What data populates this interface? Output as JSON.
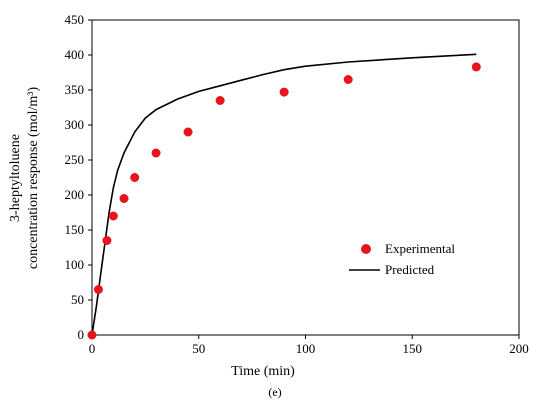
{
  "chart_data": {
    "type": "scatter",
    "xlabel": "Time (min)",
    "ylabel_line1": "3-heptyltoluene",
    "ylabel_line2": "concentration response (mol/m³)",
    "caption": "(e)",
    "xlim": [
      0,
      200
    ],
    "ylim": [
      0,
      450
    ],
    "x_ticks": [
      0,
      50,
      100,
      150,
      200
    ],
    "y_ticks": [
      0,
      50,
      100,
      150,
      200,
      250,
      300,
      350,
      400,
      450
    ],
    "legend_position": "center-right",
    "grid": false,
    "series": [
      {
        "name": "Experimental",
        "kind": "scatter",
        "color": "#e8141b",
        "x": [
          0,
          3,
          7,
          10,
          15,
          20,
          30,
          45,
          60,
          90,
          120,
          180
        ],
        "y": [
          0,
          65,
          135,
          170,
          195,
          225,
          260,
          290,
          335,
          347,
          365,
          383
        ]
      },
      {
        "name": "Predicted",
        "kind": "line",
        "color": "#000000",
        "x": [
          0,
          2,
          4,
          6,
          8,
          10,
          12,
          15,
          20,
          25,
          30,
          40,
          50,
          60,
          70,
          80,
          90,
          100,
          120,
          150,
          180
        ],
        "y": [
          0,
          40,
          85,
          130,
          175,
          210,
          235,
          260,
          290,
          310,
          322,
          337,
          348,
          356,
          364,
          372,
          379,
          384,
          390,
          396,
          401
        ]
      }
    ]
  }
}
